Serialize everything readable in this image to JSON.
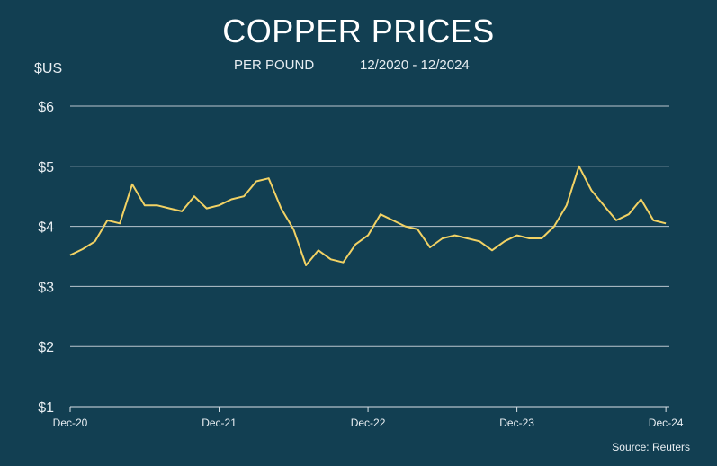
{
  "chart_data": {
    "type": "line",
    "title": "COPPER PRICES",
    "subtitle": "PER POUND",
    "date_range": "12/2020 - 12/2024",
    "ylabel": "$US",
    "source": "Source: Reuters",
    "ylim": [
      1,
      6
    ],
    "y_ticks": [
      {
        "value": 6,
        "label": "$6"
      },
      {
        "value": 5,
        "label": "$5"
      },
      {
        "value": 4,
        "label": "$4"
      },
      {
        "value": 3,
        "label": "$3"
      },
      {
        "value": 2,
        "label": "$2"
      },
      {
        "value": 1,
        "label": "$1"
      }
    ],
    "xlim": [
      "2020-12",
      "2024-12"
    ],
    "x_ticks": [
      {
        "value": "2020-12",
        "label": "Dec-20"
      },
      {
        "value": "2021-12",
        "label": "Dec-21"
      },
      {
        "value": "2022-12",
        "label": "Dec-22"
      },
      {
        "value": "2023-12",
        "label": "Dec-23"
      },
      {
        "value": "2024-12",
        "label": "Dec-24"
      }
    ],
    "grid": true,
    "line_color": "#f2d264",
    "series": [
      {
        "x": [
          "2020-12",
          "2021-01",
          "2021-02",
          "2021-03",
          "2021-04",
          "2021-05",
          "2021-06",
          "2021-07",
          "2021-08",
          "2021-09",
          "2021-10",
          "2021-11",
          "2021-12",
          "2022-01",
          "2022-02",
          "2022-03",
          "2022-04",
          "2022-05",
          "2022-06",
          "2022-07",
          "2022-08",
          "2022-09",
          "2022-10",
          "2022-11",
          "2022-12",
          "2023-01",
          "2023-02",
          "2023-03",
          "2023-04",
          "2023-05",
          "2023-06",
          "2023-07",
          "2023-08",
          "2023-09",
          "2023-10",
          "2023-11",
          "2023-12",
          "2024-01",
          "2024-02",
          "2024-03",
          "2024-04",
          "2024-05",
          "2024-06",
          "2024-07",
          "2024-08",
          "2024-09",
          "2024-10",
          "2024-11",
          "2024-12"
        ],
        "values": [
          3.52,
          3.62,
          3.75,
          4.1,
          4.05,
          4.7,
          4.35,
          4.35,
          4.3,
          4.25,
          4.5,
          4.3,
          4.35,
          4.45,
          4.5,
          4.75,
          4.8,
          4.3,
          3.95,
          3.35,
          3.6,
          3.45,
          3.4,
          3.7,
          3.85,
          4.2,
          4.1,
          4.0,
          3.95,
          3.65,
          3.8,
          3.85,
          3.8,
          3.75,
          3.6,
          3.75,
          3.85,
          3.8,
          3.8,
          4.0,
          4.35,
          5.0,
          4.6,
          4.35,
          4.1,
          4.2,
          4.45,
          4.1,
          4.05
        ]
      }
    ]
  }
}
